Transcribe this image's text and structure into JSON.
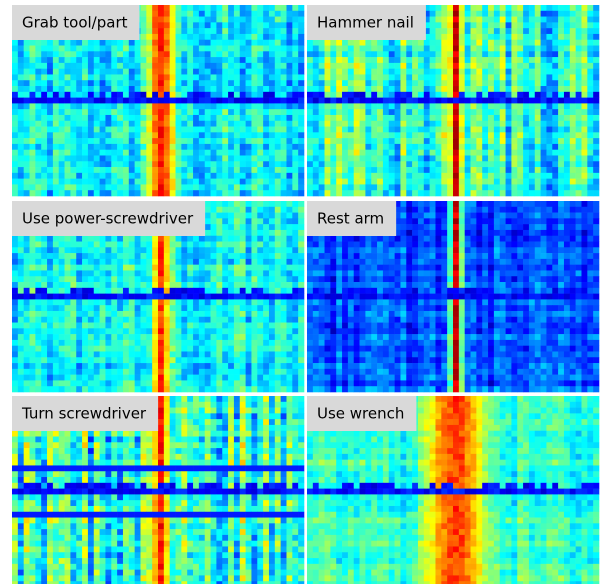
{
  "panels": [
    {
      "label": "Grab tool/part"
    },
    {
      "label": "Hammer nail"
    },
    {
      "label": "Use power-screwdriver"
    },
    {
      "label": "Rest arm"
    },
    {
      "label": "Turn screwdriver"
    },
    {
      "label": "Use wrench"
    }
  ]
}
